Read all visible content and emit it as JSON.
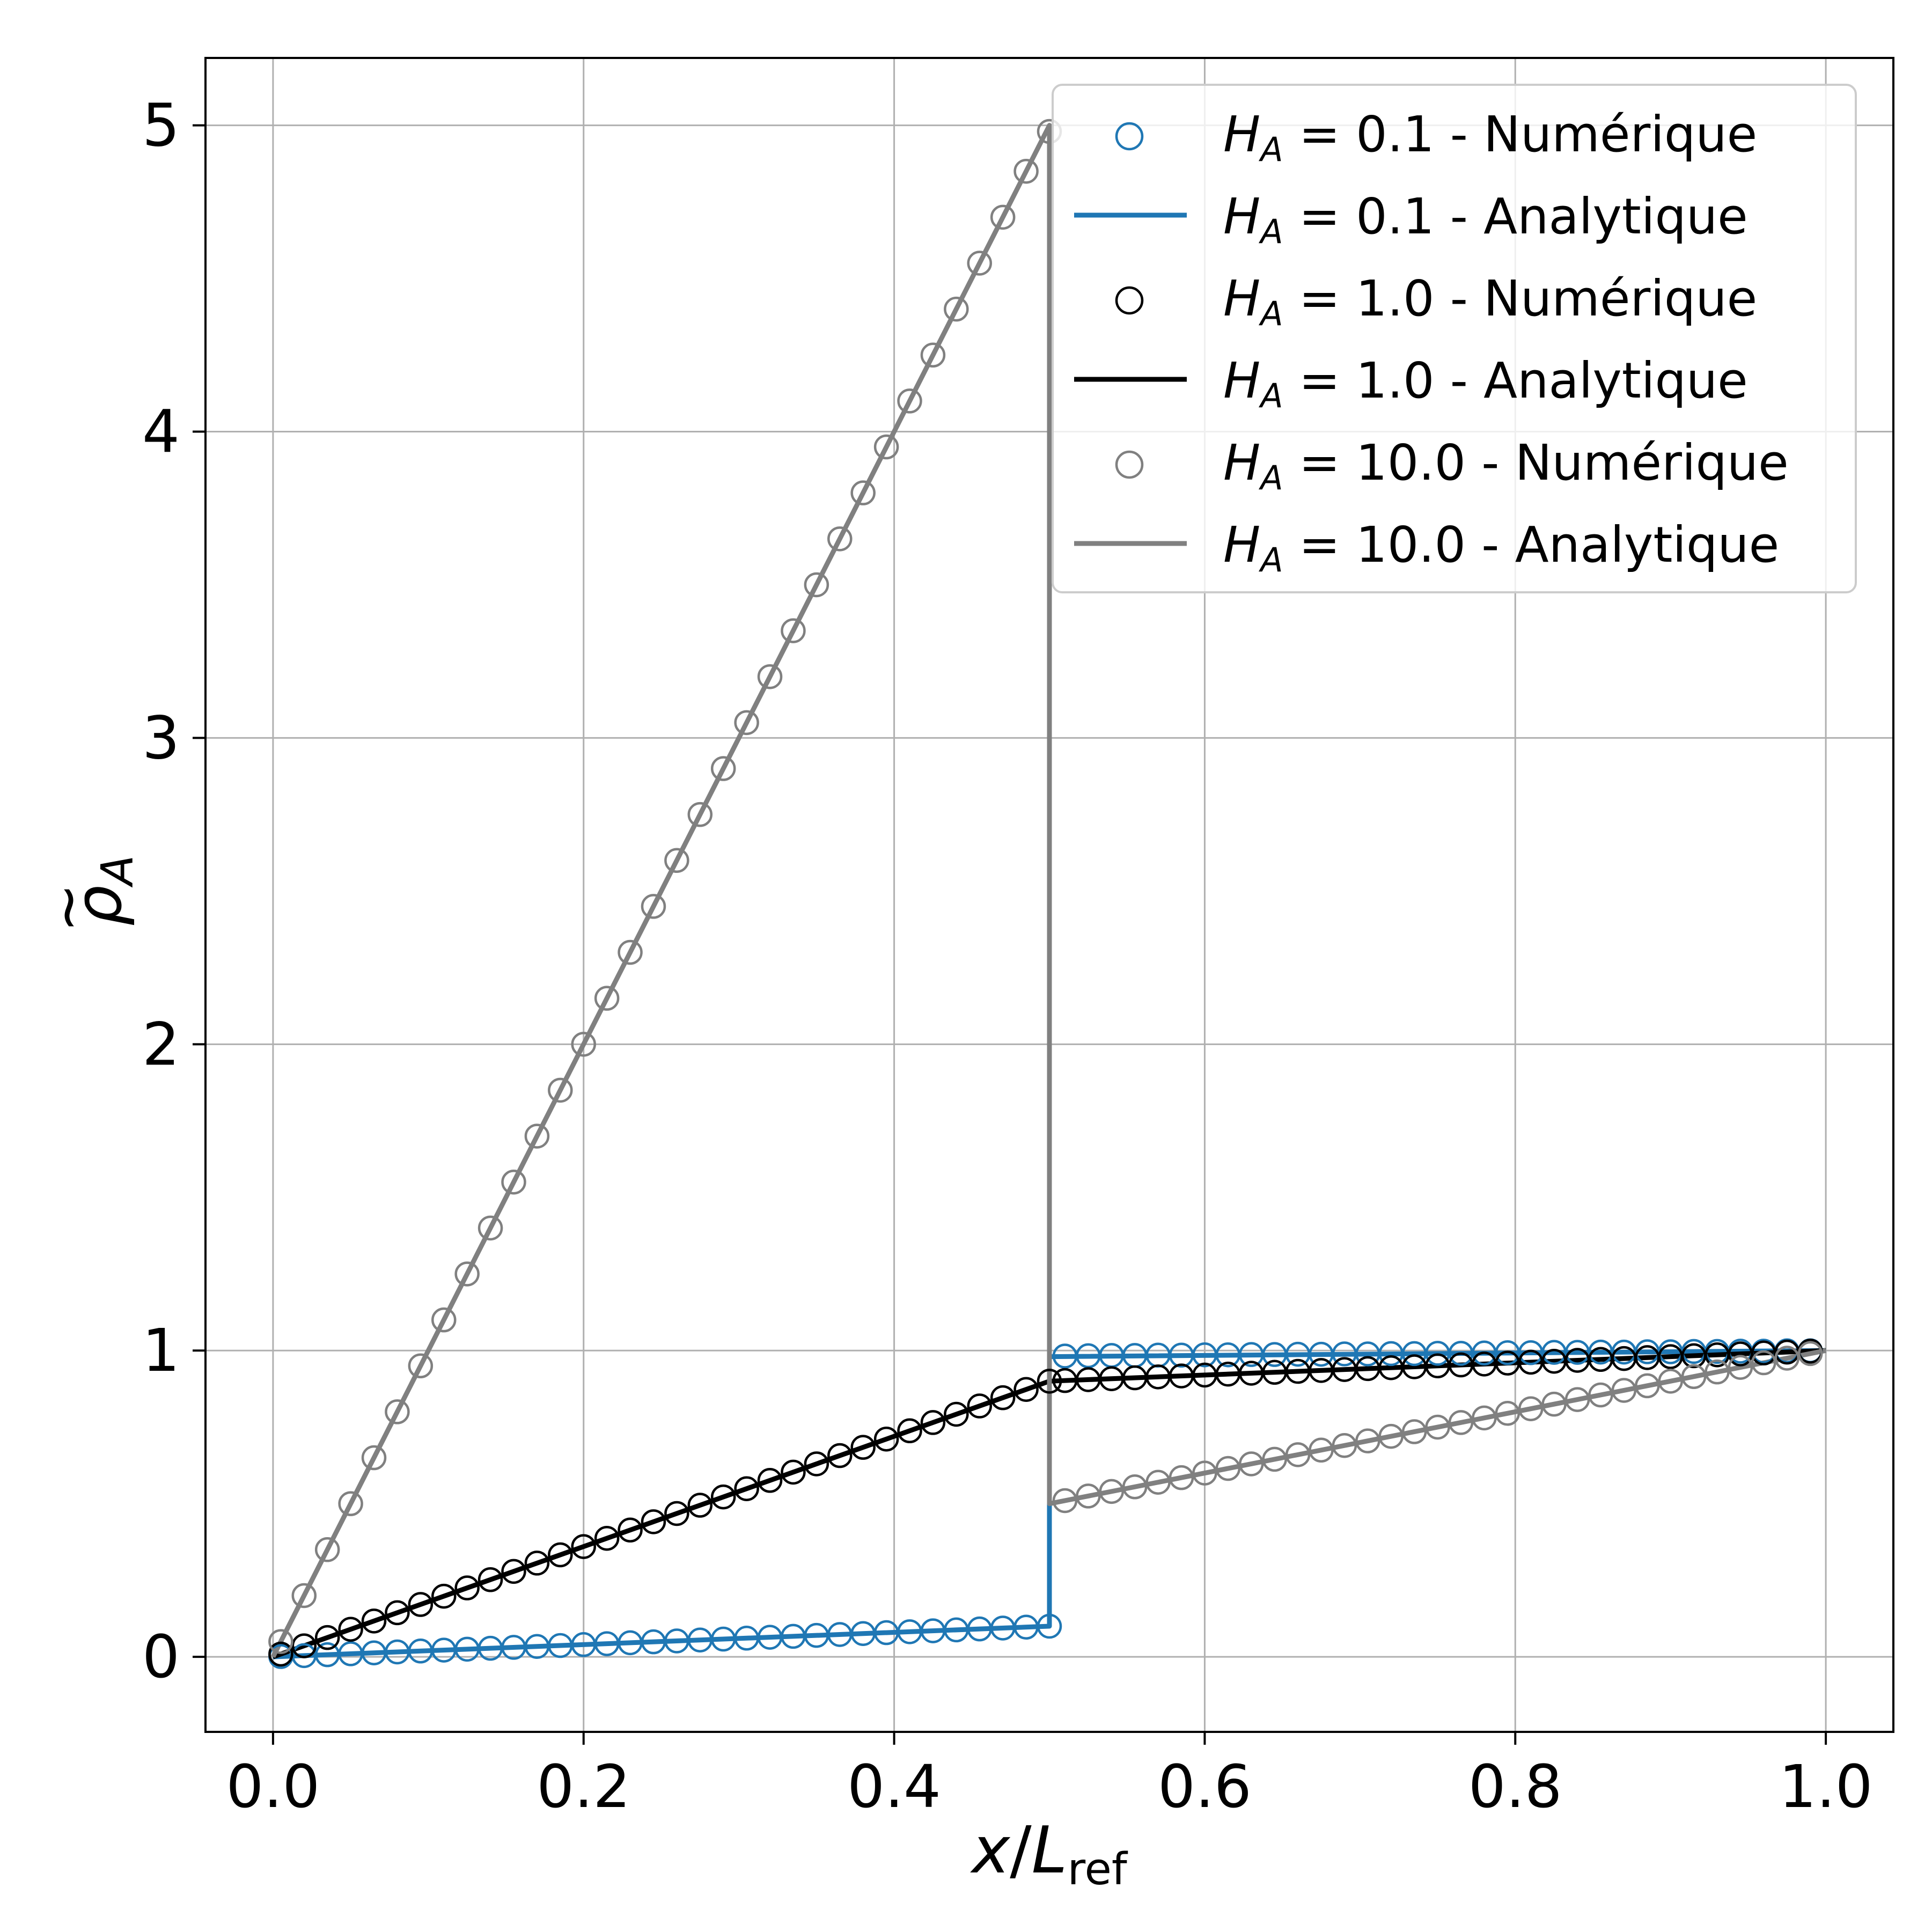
{
  "chart_data": {
    "type": "line",
    "xlabel": {
      "var": "x",
      "sep": "/",
      "L": "L",
      "sub": "ref"
    },
    "ylabel": {
      "rho": "ρ",
      "tilde": "~",
      "sub": "A"
    },
    "xlim": [
      -0.0435,
      1.0435
    ],
    "ylim": [
      -0.245,
      5.22
    ],
    "xticks": [
      0.0,
      0.2,
      0.4,
      0.6,
      0.8,
      1.0
    ],
    "xtick_labels": [
      "0.0",
      "0.2",
      "0.4",
      "0.6",
      "0.8",
      "1.0"
    ],
    "yticks": [
      0,
      1,
      2,
      3,
      4,
      5
    ],
    "ytick_labels": [
      "0",
      "1",
      "2",
      "3",
      "4",
      "5"
    ],
    "grid": true,
    "legend_position": "top-right",
    "numeric_x": [
      0.005,
      0.02,
      0.035,
      0.05,
      0.065,
      0.08,
      0.095,
      0.11,
      0.125,
      0.14,
      0.155,
      0.17,
      0.185,
      0.2,
      0.215,
      0.23,
      0.245,
      0.26,
      0.275,
      0.29,
      0.305,
      0.32,
      0.335,
      0.35,
      0.365,
      0.38,
      0.395,
      0.41,
      0.425,
      0.44,
      0.455,
      0.47,
      0.485,
      0.5,
      0.51,
      0.525,
      0.54,
      0.555,
      0.57,
      0.585,
      0.6,
      0.615,
      0.63,
      0.645,
      0.66,
      0.675,
      0.69,
      0.705,
      0.72,
      0.735,
      0.75,
      0.765,
      0.78,
      0.795,
      0.81,
      0.825,
      0.84,
      0.855,
      0.87,
      0.885,
      0.9,
      0.915,
      0.93,
      0.945,
      0.96,
      0.975,
      0.99
    ],
    "series": [
      {
        "name_var": "H",
        "name_sub": "A",
        "name_val": "0.1",
        "name_kind": "Numérique",
        "kind": "scatter",
        "color": "#1f77b4",
        "x": [
          0.005,
          0.02,
          0.035,
          0.05,
          0.065,
          0.08,
          0.095,
          0.11,
          0.125,
          0.14,
          0.155,
          0.17,
          0.185,
          0.2,
          0.215,
          0.23,
          0.245,
          0.26,
          0.275,
          0.29,
          0.305,
          0.32,
          0.335,
          0.35,
          0.365,
          0.38,
          0.395,
          0.41,
          0.425,
          0.44,
          0.455,
          0.47,
          0.485,
          0.5,
          0.51,
          0.525,
          0.54,
          0.555,
          0.57,
          0.585,
          0.6,
          0.615,
          0.63,
          0.645,
          0.66,
          0.675,
          0.69,
          0.705,
          0.72,
          0.735,
          0.75,
          0.765,
          0.78,
          0.795,
          0.81,
          0.825,
          0.84,
          0.855,
          0.87,
          0.885,
          0.9,
          0.915,
          0.93,
          0.945,
          0.96,
          0.975,
          0.99
        ],
        "y": [
          0.001,
          0.004,
          0.007,
          0.01,
          0.013,
          0.016,
          0.019,
          0.022,
          0.025,
          0.028,
          0.031,
          0.034,
          0.037,
          0.04,
          0.043,
          0.046,
          0.049,
          0.052,
          0.055,
          0.058,
          0.061,
          0.064,
          0.067,
          0.07,
          0.073,
          0.076,
          0.079,
          0.082,
          0.085,
          0.088,
          0.091,
          0.094,
          0.097,
          0.1,
          0.982,
          0.983,
          0.984,
          0.984,
          0.985,
          0.985,
          0.986,
          0.986,
          0.987,
          0.987,
          0.988,
          0.988,
          0.989,
          0.989,
          0.99,
          0.99,
          0.991,
          0.991,
          0.992,
          0.993,
          0.993,
          0.994,
          0.994,
          0.995,
          0.995,
          0.996,
          0.996,
          0.997,
          0.997,
          0.998,
          0.998,
          0.999,
          0.999
        ]
      },
      {
        "name_var": "H",
        "name_sub": "A",
        "name_val": "0.1",
        "name_kind": "Analytique",
        "kind": "line",
        "color": "#1f77b4",
        "x": [
          0.0,
          0.5,
          0.5,
          1.0
        ],
        "y": [
          0.0,
          0.1,
          0.98,
          1.0
        ]
      },
      {
        "name_var": "H",
        "name_sub": "A",
        "name_val": "1.0",
        "name_kind": "Numérique",
        "kind": "scatter",
        "color": "#000000",
        "x": [
          0.005,
          0.02,
          0.035,
          0.05,
          0.065,
          0.08,
          0.095,
          0.11,
          0.125,
          0.14,
          0.155,
          0.17,
          0.185,
          0.2,
          0.215,
          0.23,
          0.245,
          0.26,
          0.275,
          0.29,
          0.305,
          0.32,
          0.335,
          0.35,
          0.365,
          0.38,
          0.395,
          0.41,
          0.425,
          0.44,
          0.455,
          0.47,
          0.485,
          0.5,
          0.51,
          0.525,
          0.54,
          0.555,
          0.57,
          0.585,
          0.6,
          0.615,
          0.63,
          0.645,
          0.66,
          0.675,
          0.69,
          0.705,
          0.72,
          0.735,
          0.75,
          0.765,
          0.78,
          0.795,
          0.81,
          0.825,
          0.84,
          0.855,
          0.87,
          0.885,
          0.9,
          0.915,
          0.93,
          0.945,
          0.96,
          0.975,
          0.99
        ],
        "y": [
          0.009,
          0.036,
          0.063,
          0.09,
          0.117,
          0.144,
          0.171,
          0.198,
          0.225,
          0.252,
          0.279,
          0.306,
          0.333,
          0.36,
          0.387,
          0.414,
          0.441,
          0.468,
          0.495,
          0.522,
          0.549,
          0.576,
          0.603,
          0.63,
          0.657,
          0.684,
          0.711,
          0.738,
          0.765,
          0.792,
          0.819,
          0.846,
          0.873,
          0.9,
          0.902,
          0.905,
          0.908,
          0.911,
          0.914,
          0.917,
          0.92,
          0.923,
          0.926,
          0.929,
          0.932,
          0.935,
          0.938,
          0.941,
          0.944,
          0.947,
          0.95,
          0.953,
          0.956,
          0.959,
          0.962,
          0.965,
          0.968,
          0.971,
          0.974,
          0.977,
          0.98,
          0.983,
          0.986,
          0.989,
          0.992,
          0.995,
          0.998
        ]
      },
      {
        "name_var": "H",
        "name_sub": "A",
        "name_val": "1.0",
        "name_kind": "Analytique",
        "kind": "line",
        "color": "#000000",
        "x": [
          0.0,
          0.5,
          1.0
        ],
        "y": [
          0.0,
          0.9,
          1.0
        ]
      },
      {
        "name_var": "H",
        "name_sub": "A",
        "name_val": "10.0",
        "name_kind": "Numérique",
        "kind": "scatter",
        "color": "#808080",
        "x": [
          0.005,
          0.02,
          0.035,
          0.05,
          0.065,
          0.08,
          0.095,
          0.11,
          0.125,
          0.14,
          0.155,
          0.17,
          0.185,
          0.2,
          0.215,
          0.23,
          0.245,
          0.26,
          0.275,
          0.29,
          0.305,
          0.32,
          0.335,
          0.35,
          0.365,
          0.38,
          0.395,
          0.41,
          0.425,
          0.44,
          0.455,
          0.47,
          0.485,
          0.5,
          0.51,
          0.525,
          0.54,
          0.555,
          0.57,
          0.585,
          0.6,
          0.615,
          0.63,
          0.645,
          0.66,
          0.675,
          0.69,
          0.705,
          0.72,
          0.735,
          0.75,
          0.765,
          0.78,
          0.795,
          0.81,
          0.825,
          0.84,
          0.855,
          0.87,
          0.885,
          0.9,
          0.915,
          0.93,
          0.945,
          0.96,
          0.975,
          0.99
        ],
        "y": [
          0.05,
          0.2,
          0.35,
          0.5,
          0.65,
          0.8,
          0.95,
          1.1,
          1.25,
          1.4,
          1.55,
          1.7,
          1.85,
          2.0,
          2.15,
          2.3,
          2.45,
          2.6,
          2.75,
          2.9,
          3.05,
          3.2,
          3.35,
          3.5,
          3.65,
          3.8,
          3.95,
          4.1,
          4.25,
          4.4,
          4.55,
          4.7,
          4.85,
          4.98,
          0.51,
          0.525,
          0.54,
          0.555,
          0.57,
          0.585,
          0.6,
          0.615,
          0.63,
          0.645,
          0.66,
          0.675,
          0.69,
          0.705,
          0.72,
          0.735,
          0.75,
          0.765,
          0.78,
          0.795,
          0.81,
          0.825,
          0.84,
          0.855,
          0.87,
          0.885,
          0.9,
          0.915,
          0.93,
          0.945,
          0.96,
          0.975,
          0.99
        ]
      },
      {
        "name_var": "H",
        "name_sub": "A",
        "name_val": "10.0",
        "name_kind": "Analytique",
        "kind": "line",
        "color": "#808080",
        "x": [
          0.0,
          0.5,
          0.5,
          1.0
        ],
        "y": [
          0.0,
          5.0,
          0.5,
          1.0
        ]
      }
    ]
  }
}
